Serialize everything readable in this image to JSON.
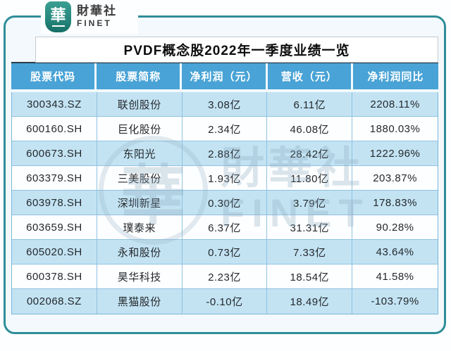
{
  "brand": {
    "mark": "華",
    "name": "財華社",
    "sub": "FINET"
  },
  "watermark": {
    "mark": "華",
    "name": "財華社",
    "sub": "FINET"
  },
  "chart_data": {
    "type": "table",
    "title": "PVDF概念股2022年一季度业绩一览",
    "columns": [
      "股票代码",
      "股票简称",
      "净利润（元）",
      "营收（元）",
      "净利润同比"
    ],
    "rows": [
      [
        "300343.SZ",
        "联创股份",
        "3.08亿",
        "6.11亿",
        "2208.11%"
      ],
      [
        "600160.SH",
        "巨化股份",
        "2.34亿",
        "46.08亿",
        "1880.03%"
      ],
      [
        "600673.SH",
        "东阳光",
        "2.88亿",
        "28.42亿",
        "1222.96%"
      ],
      [
        "603379.SH",
        "三美股份",
        "1.93亿",
        "11.80亿",
        "203.87%"
      ],
      [
        "603978.SH",
        "深圳新星",
        "0.30亿",
        "3.79亿",
        "178.83%"
      ],
      [
        "603659.SH",
        "璞泰来",
        "6.37亿",
        "31.31亿",
        "90.28%"
      ],
      [
        "605020.SH",
        "永和股份",
        "0.73亿",
        "7.33亿",
        "43.64%"
      ],
      [
        "600378.SH",
        "昊华科技",
        "2.23亿",
        "18.54亿",
        "41.58%"
      ],
      [
        "002068.SZ",
        "黑猫股份",
        "-0.10亿",
        "18.49亿",
        "-103.79%"
      ]
    ]
  },
  "colors": {
    "frame_teal": "#2f8e99",
    "brand_teal": "#27897e",
    "header_blue": "#49a3d6",
    "row_alt_blue": "#c3e3f3",
    "cell_border_blue": "#8fc2e0"
  }
}
